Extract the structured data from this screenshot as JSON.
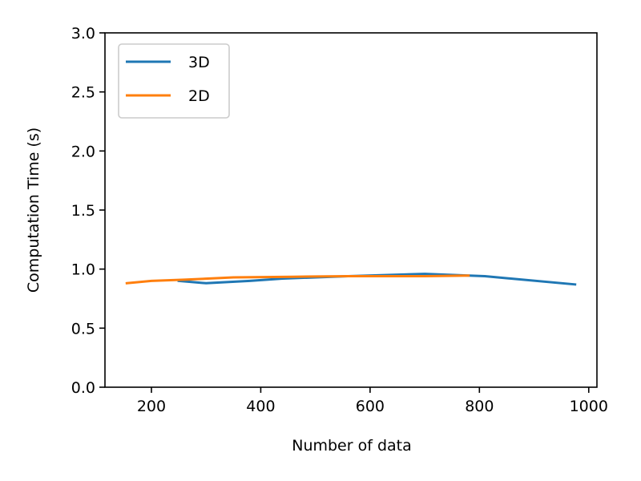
{
  "chart_data": {
    "type": "line",
    "title": "",
    "xlabel": "Number of data",
    "ylabel": "Computation Time (s)",
    "xlim": [
      115,
      1015
    ],
    "ylim": [
      0.0,
      3.0
    ],
    "xticks": [
      200,
      400,
      600,
      800,
      1000
    ],
    "xtick_labels": [
      "200",
      "400",
      "600",
      "800",
      "1000"
    ],
    "yticks": [
      0.0,
      0.5,
      1.0,
      1.5,
      2.0,
      2.5,
      3.0
    ],
    "ytick_labels": [
      "0.0",
      "0.5",
      "1.0",
      "1.5",
      "2.0",
      "2.5",
      "3.0"
    ],
    "grid": false,
    "legend_position": "top-left",
    "series": [
      {
        "name": "3D",
        "color": "#1f77b4",
        "x": [
          250,
          300,
          380,
          440,
          560,
          700,
          810,
          975
        ],
        "y": [
          0.9,
          0.88,
          0.9,
          0.92,
          0.94,
          0.96,
          0.94,
          0.87
        ]
      },
      {
        "name": "2D",
        "color": "#ff7f0e",
        "x": [
          155,
          200,
          260,
          350,
          460,
          560,
          700,
          780
        ],
        "y": [
          0.88,
          0.9,
          0.91,
          0.93,
          0.935,
          0.94,
          0.94,
          0.945
        ]
      }
    ]
  }
}
